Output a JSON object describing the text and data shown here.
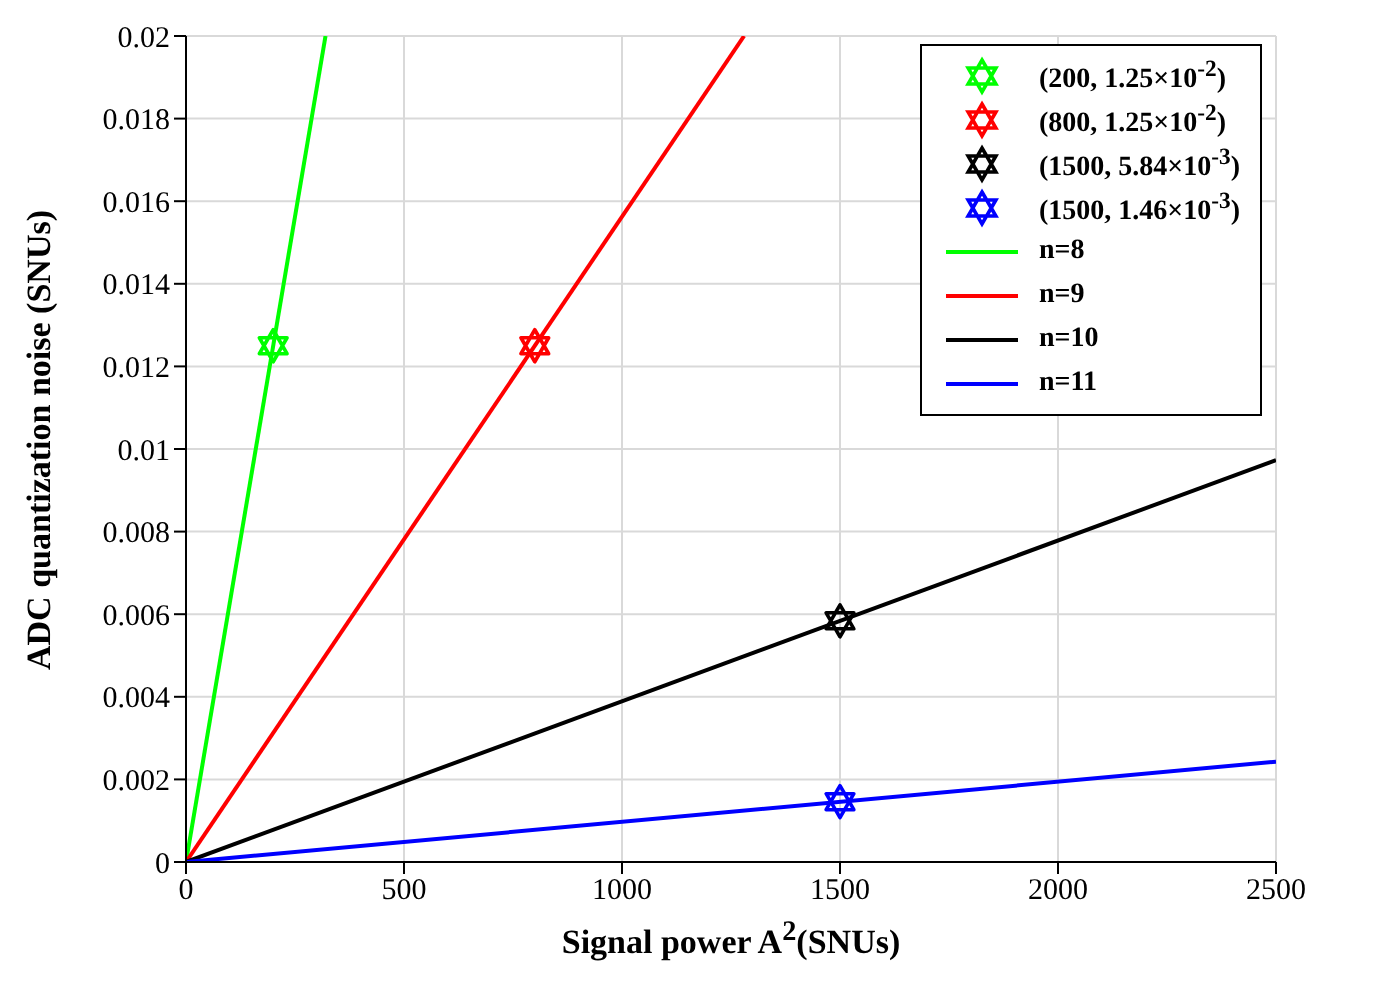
{
  "chart_data": {
    "type": "line",
    "xlabel": "Signal power A$^{2}$(SNUs)",
    "ylabel": "ADC quantization noise (SNUs)",
    "xlim": [
      0,
      2500
    ],
    "xticks": [
      0,
      500,
      1000,
      1500,
      2000,
      2500
    ],
    "ylim": [
      0,
      0.02
    ],
    "yticks": [
      0,
      0.002,
      0.004,
      0.006,
      0.008,
      0.01,
      0.012,
      0.014,
      0.016,
      0.018,
      0.02
    ],
    "grid": true,
    "legend": "top right",
    "series": [
      {
        "name": "(200, 1.25×10$^{-2}$)",
        "type": "scatter",
        "marker": "star",
        "color": "#00ff00",
        "x": [
          200
        ],
        "values": [
          0.0125
        ]
      },
      {
        "name": "(800, 1.25×10$^{-2}$)",
        "type": "scatter",
        "marker": "star",
        "color": "#ff0000",
        "x": [
          800
        ],
        "values": [
          0.0125
        ]
      },
      {
        "name": "(1500, 5.84×10$^{-3}$)",
        "type": "scatter",
        "marker": "star",
        "color": "#000000",
        "x": [
          1500
        ],
        "values": [
          0.00584
        ]
      },
      {
        "name": "(1500, 1.46×10$^{-3}$)",
        "type": "scatter",
        "marker": "star",
        "color": "#0000ff",
        "x": [
          1500
        ],
        "values": [
          0.00146
        ]
      },
      {
        "name": "n=8",
        "color": "#00ff00",
        "x": [
          0,
          320
        ],
        "values": [
          0,
          0.02
        ]
      },
      {
        "name": "n=9",
        "color": "#ff0000",
        "x": [
          0,
          1280
        ],
        "values": [
          0,
          0.02
        ]
      },
      {
        "name": "n=10",
        "color": "#000000",
        "x": [
          0,
          2500
        ],
        "values": [
          0,
          0.00973
        ]
      },
      {
        "name": "n=11",
        "color": "#0000ff",
        "x": [
          0,
          2500
        ],
        "values": [
          0,
          0.00243
        ]
      }
    ]
  }
}
